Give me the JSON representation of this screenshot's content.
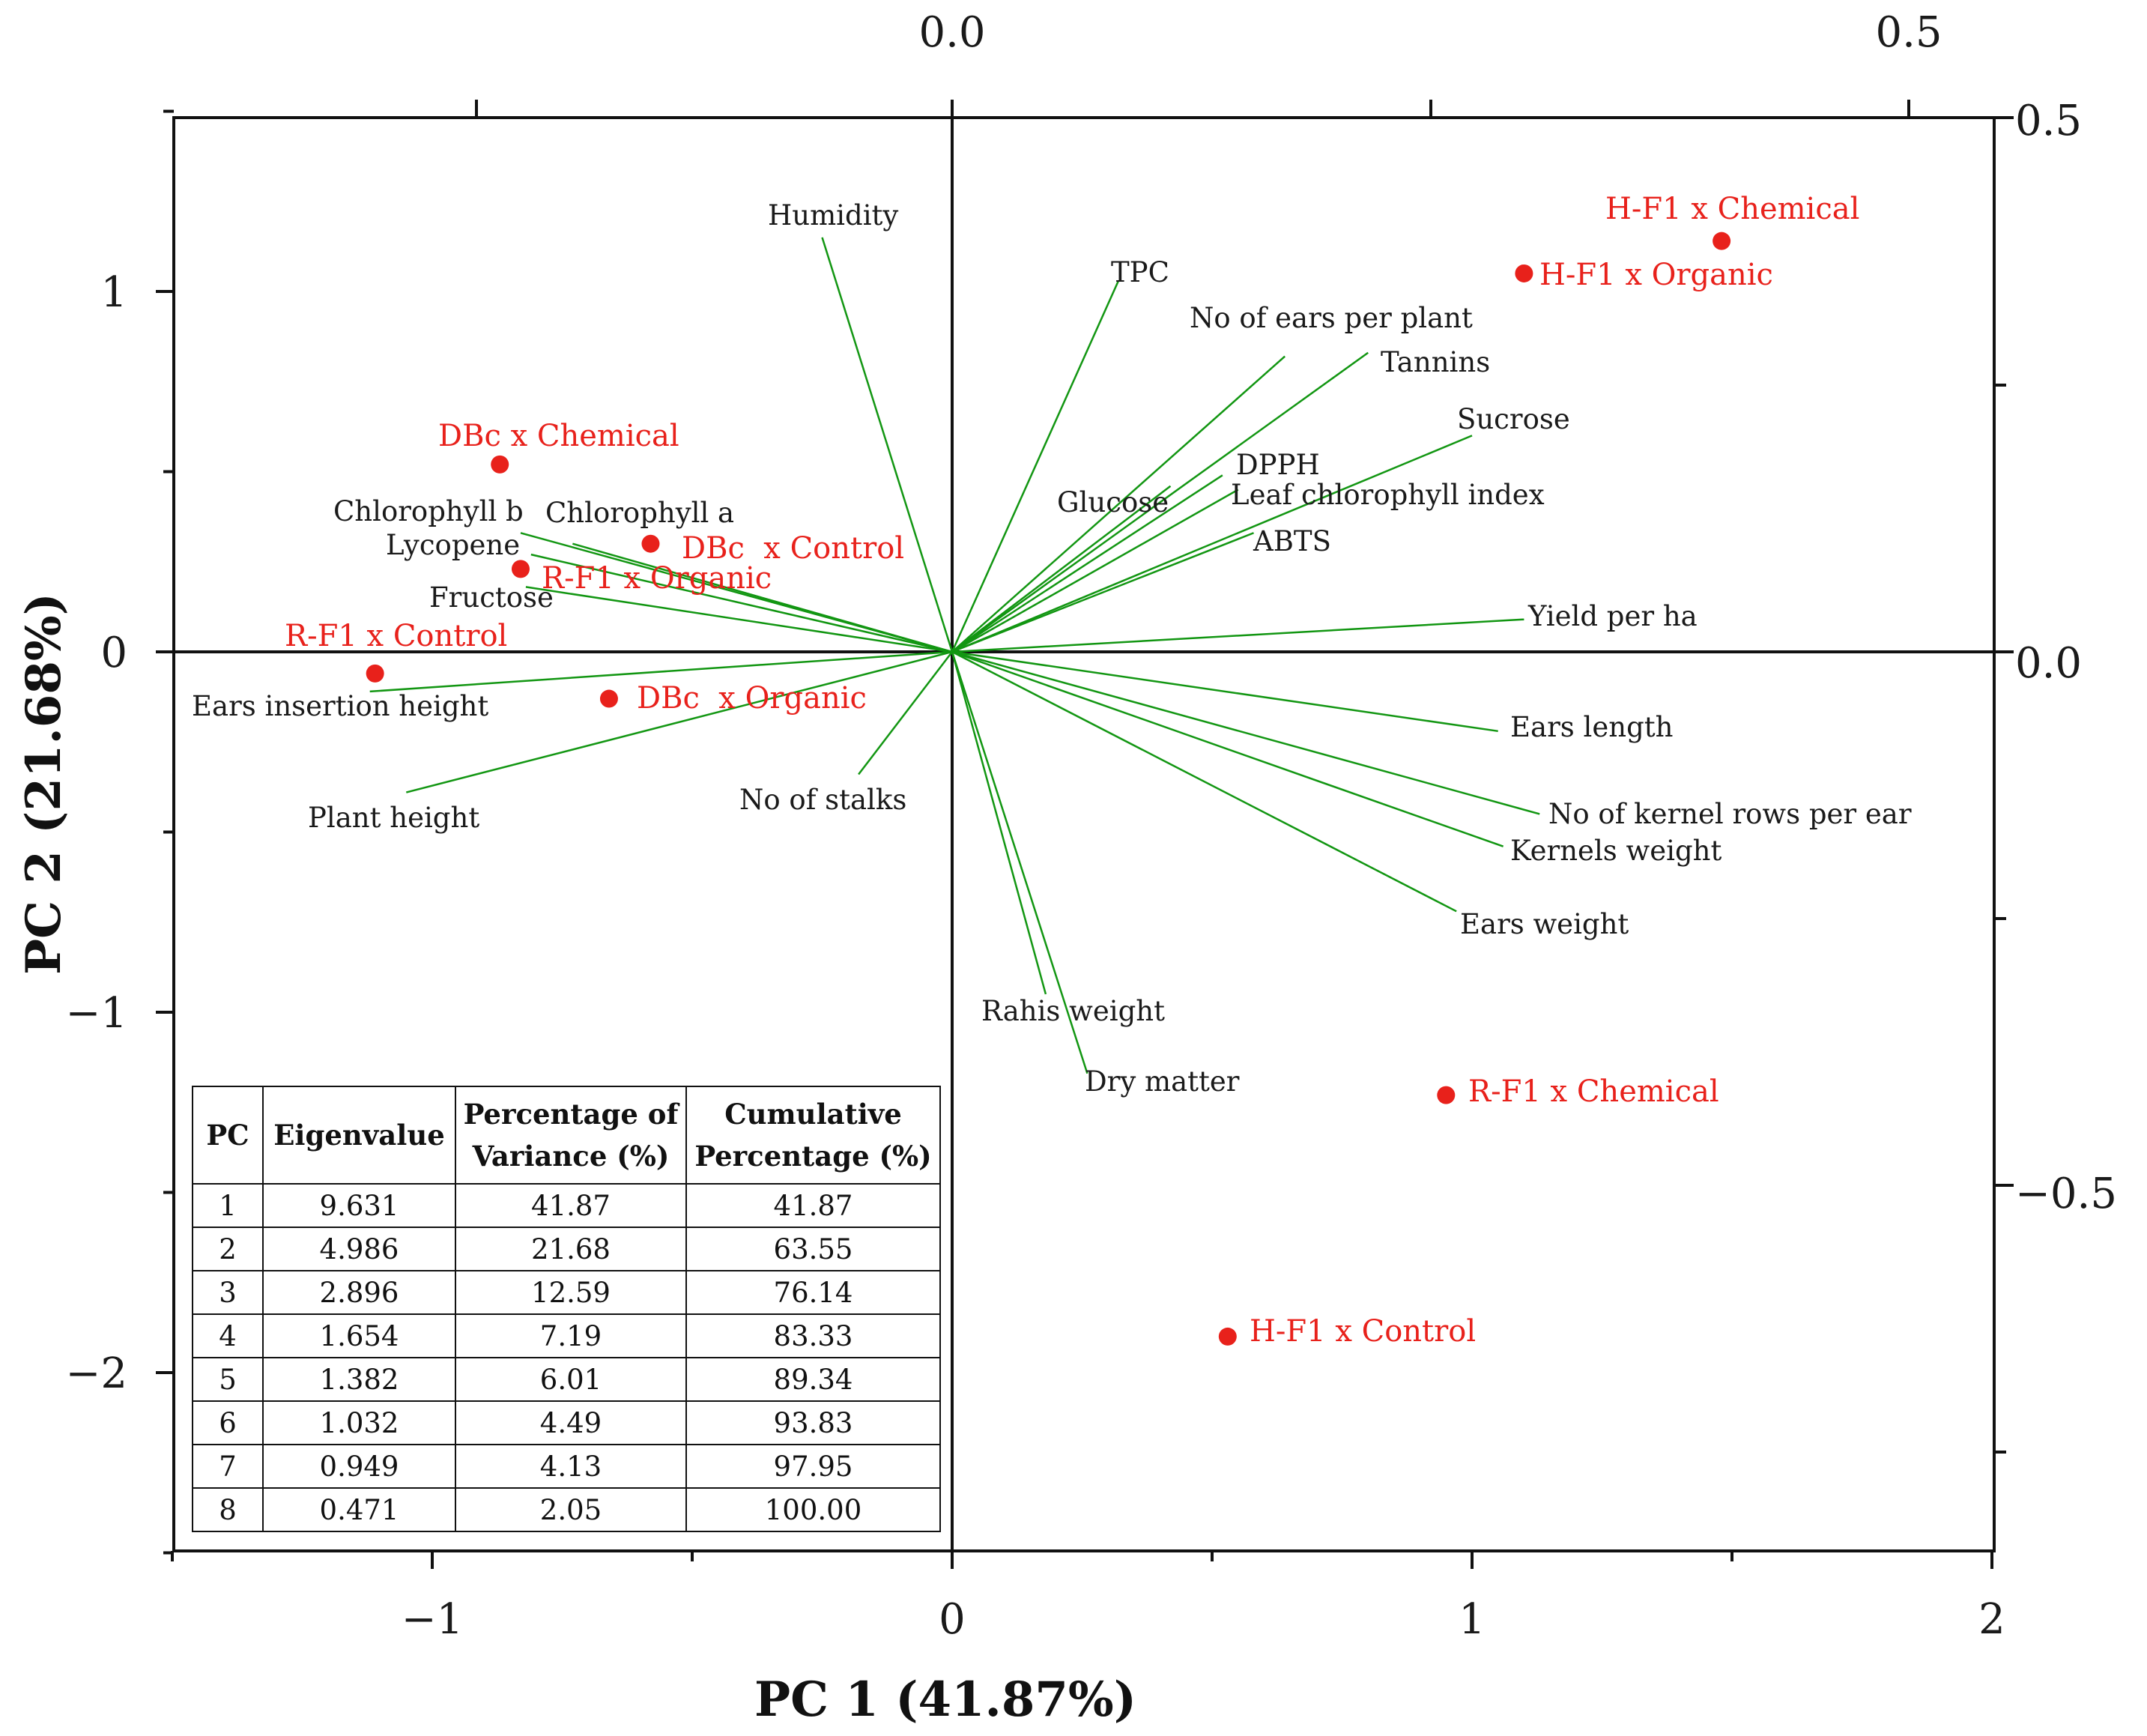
{
  "chart_data": {
    "type": "scatter",
    "subtype": "pca-biplot",
    "xlabel": "PC 1 (41.87%)",
    "ylabel": "PC 2 (21.68%)",
    "xlim": [
      -1.5,
      2.0
    ],
    "ylim": [
      -2.5,
      1.5
    ],
    "x_ticks": [
      "−1",
      "0",
      "1",
      "2"
    ],
    "y_ticks": [
      "1",
      "0",
      "−1",
      "−2"
    ],
    "top_ticks": [
      "0.0",
      "0.5"
    ],
    "right_ticks": [
      "0.5",
      "0.0",
      "−0.5"
    ],
    "zero_lines": true,
    "point_color": "#e8211b",
    "vector_color": "#129612",
    "points": [
      {
        "label": "H-F1 x Chemical",
        "x": 1.48,
        "y": 1.14
      },
      {
        "label": "H-F1 x Organic",
        "x": 1.1,
        "y": 1.05
      },
      {
        "label": "DBc x Chemical",
        "x": -0.87,
        "y": 0.52
      },
      {
        "label": "DBc  x Control",
        "x": -0.58,
        "y": 0.3
      },
      {
        "label": "R-F1 x Organic",
        "x": -0.83,
        "y": 0.23
      },
      {
        "label": "R-F1 x Control",
        "x": -1.11,
        "y": -0.06
      },
      {
        "label": "DBc  x Organic",
        "x": -0.66,
        "y": -0.13
      },
      {
        "label": "R-F1 x Chemical",
        "x": 0.95,
        "y": -1.23
      },
      {
        "label": "H-F1 x Control",
        "x": 0.53,
        "y": -1.9
      }
    ],
    "loadings": [
      {
        "label": "Humidity",
        "x": -0.25,
        "y": 1.15
      },
      {
        "label": "TPC",
        "x": 0.32,
        "y": 1.03
      },
      {
        "label": "No of ears per plant",
        "x": 0.64,
        "y": 0.82
      },
      {
        "label": "Tannins",
        "x": 0.8,
        "y": 0.83
      },
      {
        "label": "Sucrose",
        "x": 1.0,
        "y": 0.6
      },
      {
        "label": "DPPH",
        "x": 0.52,
        "y": 0.49
      },
      {
        "label": "Glucose",
        "x": 0.42,
        "y": 0.46
      },
      {
        "label": "Leaf chlorophyll index",
        "x": 0.55,
        "y": 0.45
      },
      {
        "label": "ABTS",
        "x": 0.58,
        "y": 0.33
      },
      {
        "label": "Yield per ha",
        "x": 1.1,
        "y": 0.09
      },
      {
        "label": "Ears length",
        "x": 1.05,
        "y": -0.22
      },
      {
        "label": "No of kernel rows per ear",
        "x": 1.13,
        "y": -0.45
      },
      {
        "label": "Kernels weight",
        "x": 1.06,
        "y": -0.54
      },
      {
        "label": "Ears weight",
        "x": 0.97,
        "y": -0.72
      },
      {
        "label": "Rahis weight",
        "x": 0.18,
        "y": -0.95
      },
      {
        "label": "Dry matter",
        "x": 0.26,
        "y": -1.17
      },
      {
        "label": "No of stalks",
        "x": -0.18,
        "y": -0.34
      },
      {
        "label": "Plant height",
        "x": -1.05,
        "y": -0.39
      },
      {
        "label": "Ears insertion height",
        "x": -1.12,
        "y": -0.11
      },
      {
        "label": "Fructose",
        "x": -0.82,
        "y": 0.18
      },
      {
        "label": "Lycopene",
        "x": -0.81,
        "y": 0.27
      },
      {
        "label": "Chlorophyll b",
        "x": -0.83,
        "y": 0.33
      },
      {
        "label": "Chlorophyll a",
        "x": -0.73,
        "y": 0.3
      }
    ]
  },
  "table": {
    "headers": [
      "PC",
      "Eigenvalue",
      "Percentage of Variance (%)",
      "Cumulative Percentage (%)"
    ],
    "rows": [
      [
        "1",
        "9.631",
        "41.87",
        "41.87"
      ],
      [
        "2",
        "4.986",
        "21.68",
        "63.55"
      ],
      [
        "3",
        "2.896",
        "12.59",
        "76.14"
      ],
      [
        "4",
        "1.654",
        "7.19",
        "83.33"
      ],
      [
        "5",
        "1.382",
        "6.01",
        "89.34"
      ],
      [
        "6",
        "1.032",
        "4.49",
        "93.83"
      ],
      [
        "7",
        "0.949",
        "4.13",
        "97.95"
      ],
      [
        "8",
        "0.471",
        "2.05",
        "100.00"
      ]
    ]
  }
}
